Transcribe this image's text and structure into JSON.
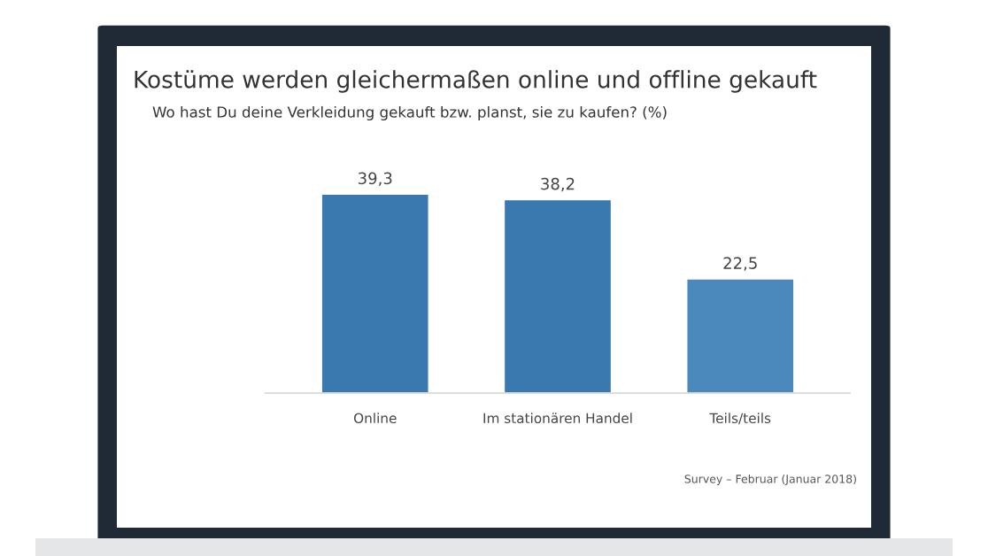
{
  "chart_data": {
    "type": "bar",
    "title": "Kostüme werden gleichermaßen online und offline gekauft",
    "subtitle": "Wo hast Du deine Verkleidung gekauft bzw. planst, sie zu kaufen? (%)",
    "categories": [
      "Online",
      "Im stationären Handel",
      "Teils/teils"
    ],
    "values": [
      39.3,
      38.2,
      22.5
    ],
    "colors": [
      "#3a78b0",
      "#3a78b0",
      "#4b88bb"
    ],
    "value_labels": [
      "39,3",
      "38,2",
      "22,5"
    ],
    "annotations": [
      "Survey – Februar (Januar 2018)"
    ],
    "grid": false
  }
}
